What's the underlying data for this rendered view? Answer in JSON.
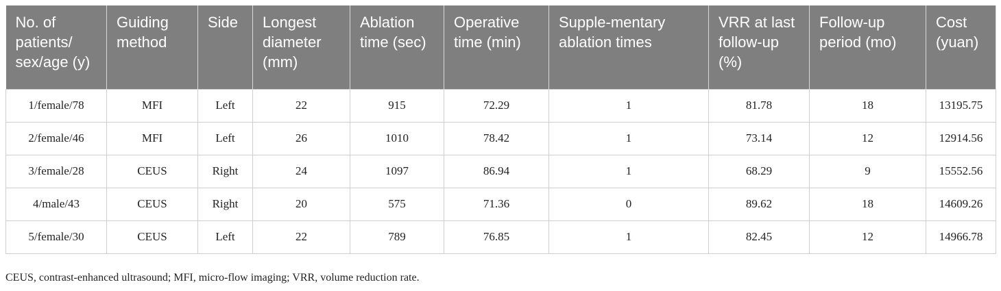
{
  "table": {
    "header": [
      "No. of patients/ sex/age (y)",
      "Guiding method",
      "Side",
      "Longest diameter (mm)",
      "Ablation time (sec)",
      "Operative time (min)",
      "Supple-mentary ablation times",
      "VRR at last follow-up (%)",
      "Follow-up period (mo)",
      "Cost (yuan)"
    ],
    "rows": [
      [
        "1/female/78",
        "MFI",
        "Left",
        "22",
        "915",
        "72.29",
        "1",
        "81.78",
        "18",
        "13195.75"
      ],
      [
        "2/female/46",
        "MFI",
        "Left",
        "26",
        "1010",
        "78.42",
        "1",
        "73.14",
        "12",
        "12914.56"
      ],
      [
        "3/female/28",
        "CEUS",
        "Right",
        "24",
        "1097",
        "86.94",
        "1",
        "68.29",
        "9",
        "15552.56"
      ],
      [
        "4/male/43",
        "CEUS",
        "Right",
        "20",
        "575",
        "71.36",
        "0",
        "89.62",
        "18",
        "14609.26"
      ],
      [
        "5/female/30",
        "CEUS",
        "Left",
        "22",
        "789",
        "76.85",
        "1",
        "82.45",
        "12",
        "14966.78"
      ]
    ]
  },
  "footnote": "CEUS, contrast-enhanced ultrasound; MFI, micro-flow imaging; VRR, volume reduction rate."
}
